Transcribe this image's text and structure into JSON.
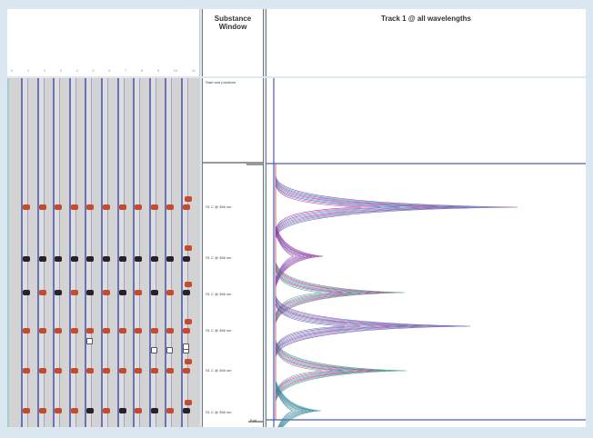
{
  "substance_window": {
    "title": "Substance Window",
    "start_label": "Start and positions",
    "end_label": "End",
    "peak_labels": [
      "S1 C @ 366 nm",
      "S1 C @ 366 nm",
      "S1 C @ 366 nm",
      "S1 C @ 366 nm",
      "S1 C @ 366 nm",
      "S1 C @ 366 nm"
    ]
  },
  "plot": {
    "title": "Track 1 @ all wavelengths"
  },
  "ruler": [
    "0",
    "1",
    "2",
    "3",
    "4",
    "5",
    "6",
    "7",
    "8",
    "9",
    "10",
    "11"
  ],
  "colors": {
    "background": "#dbe8f2",
    "lane_border": "#6673b8",
    "spot_red": "#c94a2a",
    "plot_frame": "#4c5bb5",
    "curve_purple": "#8a2b8f",
    "curve_magenta": "#d33fae",
    "curve_blue": "#3a50b8",
    "curve_green": "#3a9a5a",
    "curve_teal": "#36a9b5"
  },
  "icons": [
    "track-lane",
    "spot-marker",
    "chromatogram-curve"
  ]
}
